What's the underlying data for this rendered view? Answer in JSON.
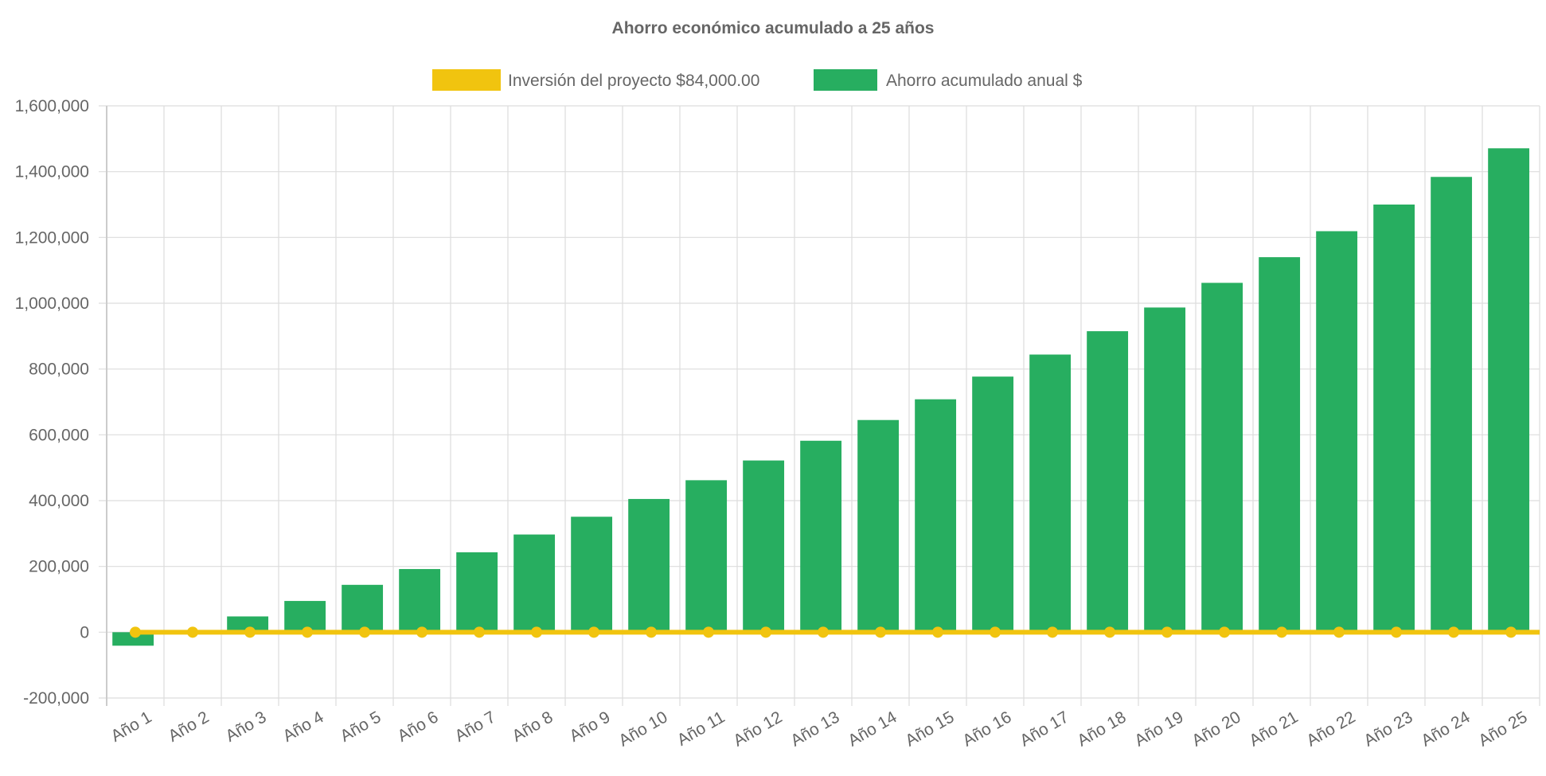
{
  "chart_data": {
    "type": "bar",
    "title": "Ahorro económico acumulado a 25 años",
    "xlabel": "",
    "ylabel": "",
    "ylim": [
      -200000,
      1600000
    ],
    "yticks": [
      -200000,
      0,
      200000,
      400000,
      600000,
      800000,
      1000000,
      1200000,
      1400000,
      1600000
    ],
    "ytick_labels": [
      "-200,000",
      "0",
      "200,000",
      "400,000",
      "600,000",
      "800,000",
      "1,000,000",
      "1,200,000",
      "1,400,000",
      "1,600,000"
    ],
    "grid": true,
    "legend_position": "top",
    "categories": [
      "Año 1",
      "Año 2",
      "Año 3",
      "Año 4",
      "Año 5",
      "Año 6",
      "Año 7",
      "Año 8",
      "Año 9",
      "Año 10",
      "Año 11",
      "Año 12",
      "Año 13",
      "Año 14",
      "Año 15",
      "Año 16",
      "Año 17",
      "Año 18",
      "Año 19",
      "Año 20",
      "Año 21",
      "Año 22",
      "Año 23",
      "Año 24",
      "Año 25"
    ],
    "series": [
      {
        "name": "Inversión del proyecto $84,000.00",
        "type": "line",
        "color": "#f1c40f",
        "values": [
          0,
          0,
          0,
          0,
          0,
          0,
          0,
          0,
          0,
          0,
          0,
          0,
          0,
          0,
          0,
          0,
          0,
          0,
          0,
          0,
          0,
          0,
          0,
          0,
          0
        ]
      },
      {
        "name": "Ahorro acumulado anual $",
        "type": "bar",
        "color": "#27ae60",
        "values": [
          -41000,
          0,
          48000,
          95000,
          144000,
          192000,
          243000,
          297000,
          351000,
          405000,
          462000,
          522000,
          582000,
          645000,
          708000,
          777000,
          844000,
          915000,
          987000,
          1062000,
          1140000,
          1219000,
          1300000,
          1384000,
          1471000
        ]
      }
    ]
  }
}
